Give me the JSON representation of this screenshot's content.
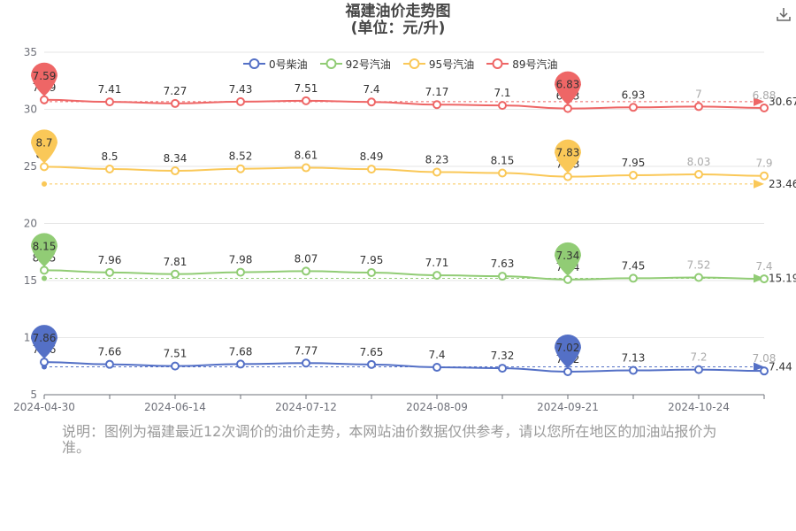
{
  "title_line1": "福建油价走势图",
  "title_line2": "(单位：元/升)",
  "download_icon": "download-icon",
  "note": "说明：图例为福建最近12次调价的油价走势，本网站油价数据仅供参考，请以您所在地区的加油站报价为准。",
  "chart_data": {
    "type": "line",
    "x": [
      "2024-04-30",
      "2024-05-23",
      "2024-06-14",
      "2024-06-28",
      "2024-07-12",
      "2024-07-26",
      "2024-08-09",
      "2024-08-23",
      "2024-09-21",
      "2024-10-10",
      "2024-10-24",
      "2024-11-07"
    ],
    "xticks": [
      "2024-04-30",
      "2024-06-14",
      "2024-07-12",
      "2024-08-09",
      "2024-09-21",
      "2024-10-24"
    ],
    "yticks": [
      5,
      10,
      15,
      20,
      25,
      30,
      35
    ],
    "ylim": [
      5,
      35
    ],
    "grid": true,
    "legend_position": "top",
    "series": [
      {
        "name": "0号柴油",
        "color": "#5470c6",
        "offset": 0,
        "values": [
          7.86,
          7.66,
          7.51,
          7.68,
          7.77,
          7.65,
          7.4,
          7.32,
          7.02,
          7.13,
          7.2,
          7.08
        ],
        "avg": 7.44,
        "max_label": "7.86",
        "min_label": "7.02"
      },
      {
        "name": "92号汽油",
        "color": "#91cc75",
        "offset": 7.75,
        "values": [
          8.15,
          7.96,
          7.81,
          7.98,
          8.07,
          7.95,
          7.71,
          7.63,
          7.34,
          7.45,
          7.52,
          7.4
        ],
        "avg": 15.19,
        "max_label": "8.15",
        "min_label": "7.34"
      },
      {
        "name": "95号汽油",
        "color": "#fac858",
        "offset": 16.27,
        "values": [
          8.7,
          8.5,
          8.34,
          8.52,
          8.61,
          8.49,
          8.23,
          8.15,
          7.83,
          7.95,
          8.03,
          7.9
        ],
        "avg": 23.46,
        "max_label": "8.7",
        "min_label": "7.83"
      },
      {
        "name": "89号汽油",
        "color": "#ee6666",
        "offset": 23.24,
        "values": [
          7.59,
          7.41,
          7.27,
          7.43,
          7.51,
          7.4,
          7.17,
          7.1,
          6.83,
          6.93,
          7.0,
          6.88
        ],
        "avg": 30.67,
        "max_label": "7.59",
        "min_label": "6.83"
      }
    ],
    "avg_labels": [
      "7.44",
      "15.19",
      "23.46",
      "30.67"
    ]
  }
}
